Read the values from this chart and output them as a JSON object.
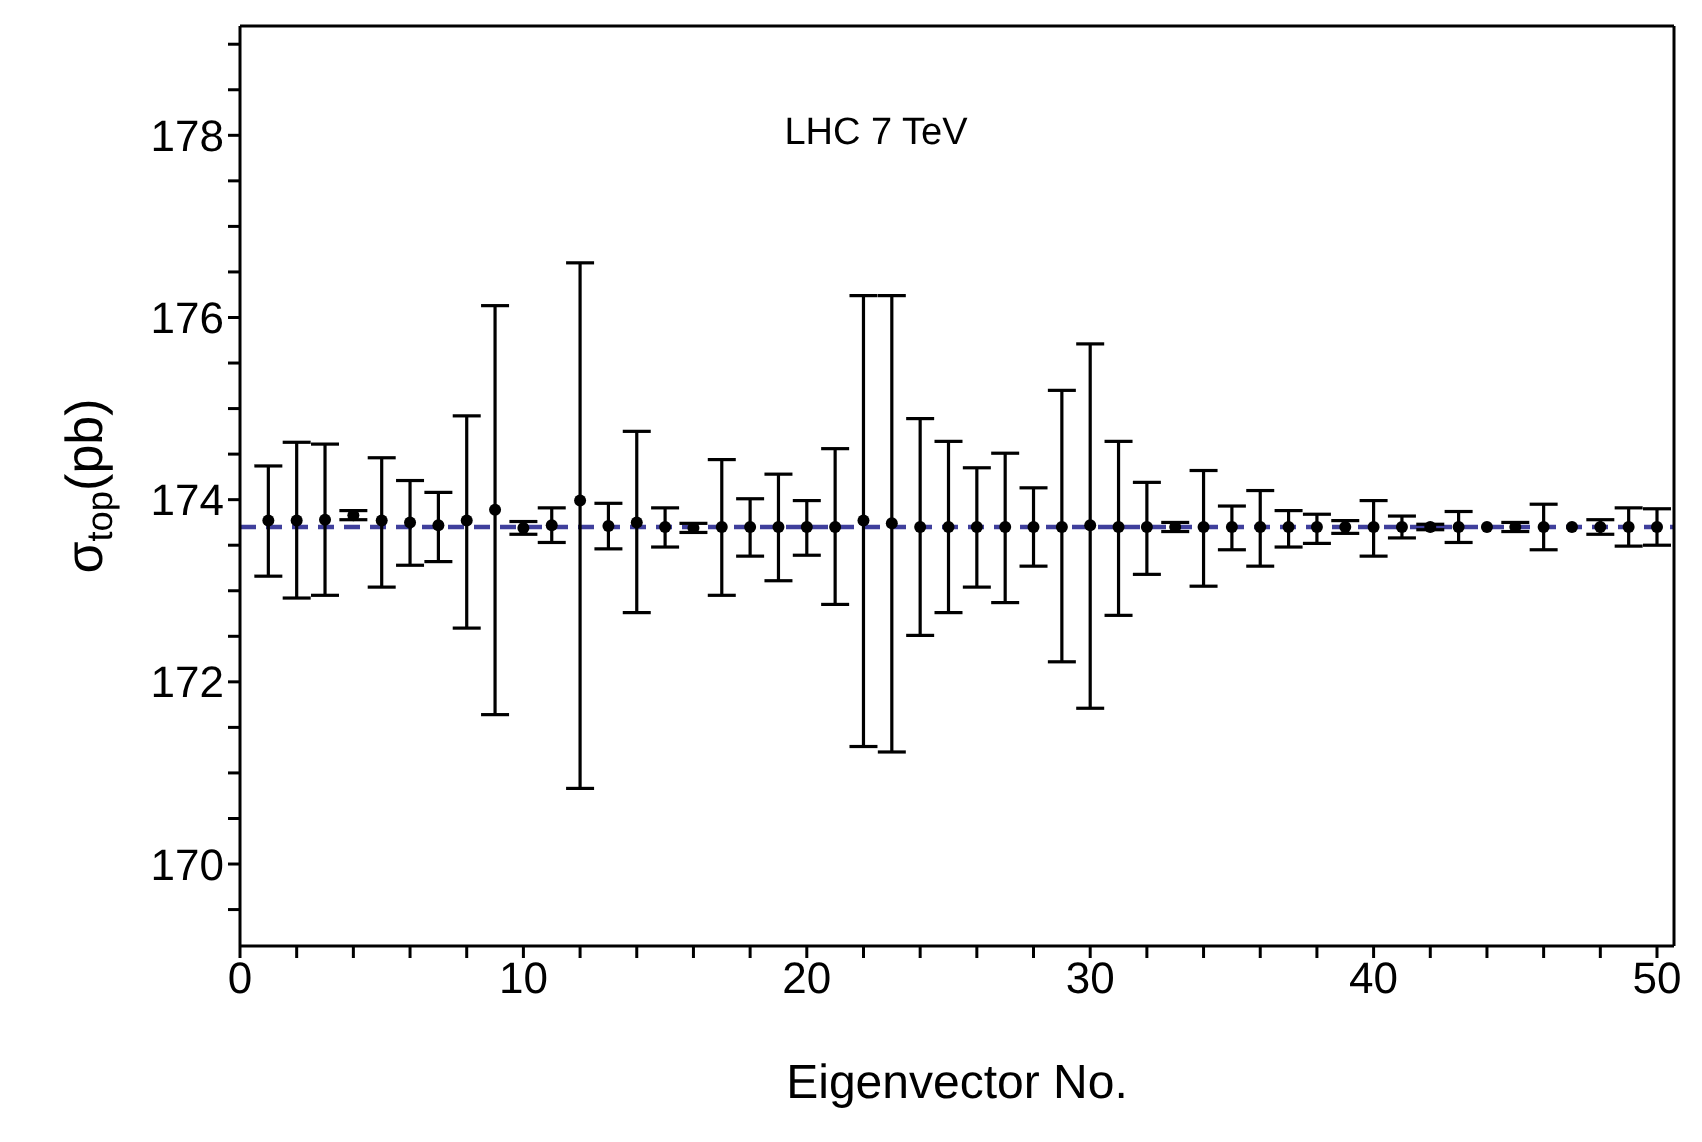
{
  "chart_data": {
    "type": "scatter",
    "xlabel": "Eigenvector No.",
    "ylabel": "σ$_{top}$(pb)",
    "annotations": [
      "LHC 7 TeV"
    ],
    "x": [
      1,
      2,
      3,
      4,
      5,
      6,
      7,
      8,
      9,
      10,
      11,
      12,
      13,
      14,
      15,
      16,
      17,
      18,
      19,
      20,
      21,
      22,
      23,
      24,
      25,
      26,
      27,
      28,
      29,
      30,
      31,
      32,
      33,
      34,
      35,
      36,
      37,
      38,
      39,
      40,
      41,
      42,
      43,
      44,
      45,
      46,
      47,
      48,
      49,
      50
    ],
    "series": [
      {
        "color": "#000000",
        "values": [
          173.77,
          173.77,
          173.78,
          173.83,
          173.77,
          173.75,
          173.72,
          173.77,
          173.89,
          173.69,
          173.72,
          173.99,
          173.71,
          173.75,
          173.7,
          173.69,
          173.7,
          173.7,
          173.7,
          173.7,
          173.7,
          173.77,
          173.74,
          173.7,
          173.7,
          173.7,
          173.7,
          173.7,
          173.7,
          173.72,
          173.7,
          173.7,
          173.7,
          173.7,
          173.7,
          173.7,
          173.7,
          173.7,
          173.7,
          173.7,
          173.7,
          173.7,
          173.7,
          173.7,
          173.7,
          173.7,
          173.7,
          173.7,
          173.7,
          173.7
        ],
        "errors": [
          [
            173.16,
            174.37
          ],
          [
            172.92,
            174.63
          ],
          [
            172.95,
            174.61
          ],
          [
            173.78,
            173.88
          ],
          [
            173.04,
            174.46
          ],
          [
            173.28,
            174.21
          ],
          [
            173.32,
            174.08
          ],
          [
            172.59,
            174.92
          ],
          [
            171.64,
            176.13
          ],
          [
            173.62,
            173.76
          ],
          [
            173.53,
            173.91
          ],
          [
            170.83,
            176.6
          ],
          [
            173.46,
            173.96
          ],
          [
            172.76,
            174.75
          ],
          [
            173.48,
            173.91
          ],
          [
            173.64,
            173.74
          ],
          [
            172.95,
            174.44
          ],
          [
            173.38,
            174.01
          ],
          [
            173.11,
            174.28
          ],
          [
            173.39,
            173.99
          ],
          [
            172.85,
            174.56
          ],
          [
            171.29,
            176.24
          ],
          [
            171.23,
            176.24
          ],
          [
            172.51,
            174.89
          ],
          [
            172.76,
            174.64
          ],
          [
            173.04,
            174.35
          ],
          [
            172.87,
            174.51
          ],
          [
            173.27,
            174.13
          ],
          [
            172.22,
            175.2
          ],
          [
            171.71,
            175.71
          ],
          [
            172.73,
            174.64
          ],
          [
            173.18,
            174.19
          ],
          [
            173.65,
            173.75
          ],
          [
            173.05,
            174.32
          ],
          [
            173.45,
            173.93
          ],
          [
            173.27,
            174.1
          ],
          [
            173.48,
            173.88
          ],
          [
            173.52,
            173.84
          ],
          [
            173.63,
            173.77
          ],
          [
            173.38,
            173.99
          ],
          [
            173.58,
            173.82
          ],
          [
            173.67,
            173.73
          ],
          [
            173.53,
            173.87
          ],
          null,
          [
            173.65,
            173.75
          ],
          [
            173.45,
            173.95
          ],
          null,
          [
            173.62,
            173.78
          ],
          [
            173.49,
            173.91
          ],
          [
            173.5,
            173.9
          ]
        ]
      }
    ],
    "ref_lines": [
      {
        "axis": "y",
        "value": 173.7,
        "color": "#3f3f9c",
        "line_style": "dashed"
      }
    ],
    "marker": "circle",
    "xlim": [
      0,
      50.6
    ],
    "xticks": [
      0,
      {
        "value": 2,
        "label": null
      },
      {
        "value": 4,
        "label": null
      },
      {
        "value": 6,
        "label": null
      },
      {
        "value": 8,
        "label": null
      },
      10,
      {
        "value": 12,
        "label": null
      },
      {
        "value": 14,
        "label": null
      },
      {
        "value": 16,
        "label": null
      },
      {
        "value": 18,
        "label": null
      },
      20,
      {
        "value": 22,
        "label": null
      },
      {
        "value": 24,
        "label": null
      },
      {
        "value": 26,
        "label": null
      },
      {
        "value": 28,
        "label": null
      },
      30,
      {
        "value": 32,
        "label": null
      },
      {
        "value": 34,
        "label": null
      },
      {
        "value": 36,
        "label": null
      },
      {
        "value": 38,
        "label": null
      },
      40,
      {
        "value": 42,
        "label": null
      },
      {
        "value": 44,
        "label": null
      },
      {
        "value": 46,
        "label": null
      },
      {
        "value": 48,
        "label": null
      },
      50
    ],
    "ylim": [
      169.1,
      179.2
    ],
    "yticks": [
      {
        "value": 169.5,
        "label": null
      },
      170,
      {
        "value": 170.5,
        "label": null
      },
      {
        "value": 171,
        "label": null
      },
      {
        "value": 171.5,
        "label": null
      },
      172,
      {
        "value": 172.5,
        "label": null
      },
      {
        "value": 173,
        "label": null
      },
      {
        "value": 173.5,
        "label": null
      },
      174,
      {
        "value": 174.5,
        "label": null
      },
      {
        "value": 175,
        "label": null
      },
      {
        "value": 175.5,
        "label": null
      },
      176,
      {
        "value": 176.5,
        "label": null
      },
      {
        "value": 177,
        "label": null
      },
      {
        "value": 177.5,
        "label": null
      },
      178,
      {
        "value": 178.5,
        "label": null
      },
      {
        "value": 179,
        "label": null
      }
    ]
  }
}
